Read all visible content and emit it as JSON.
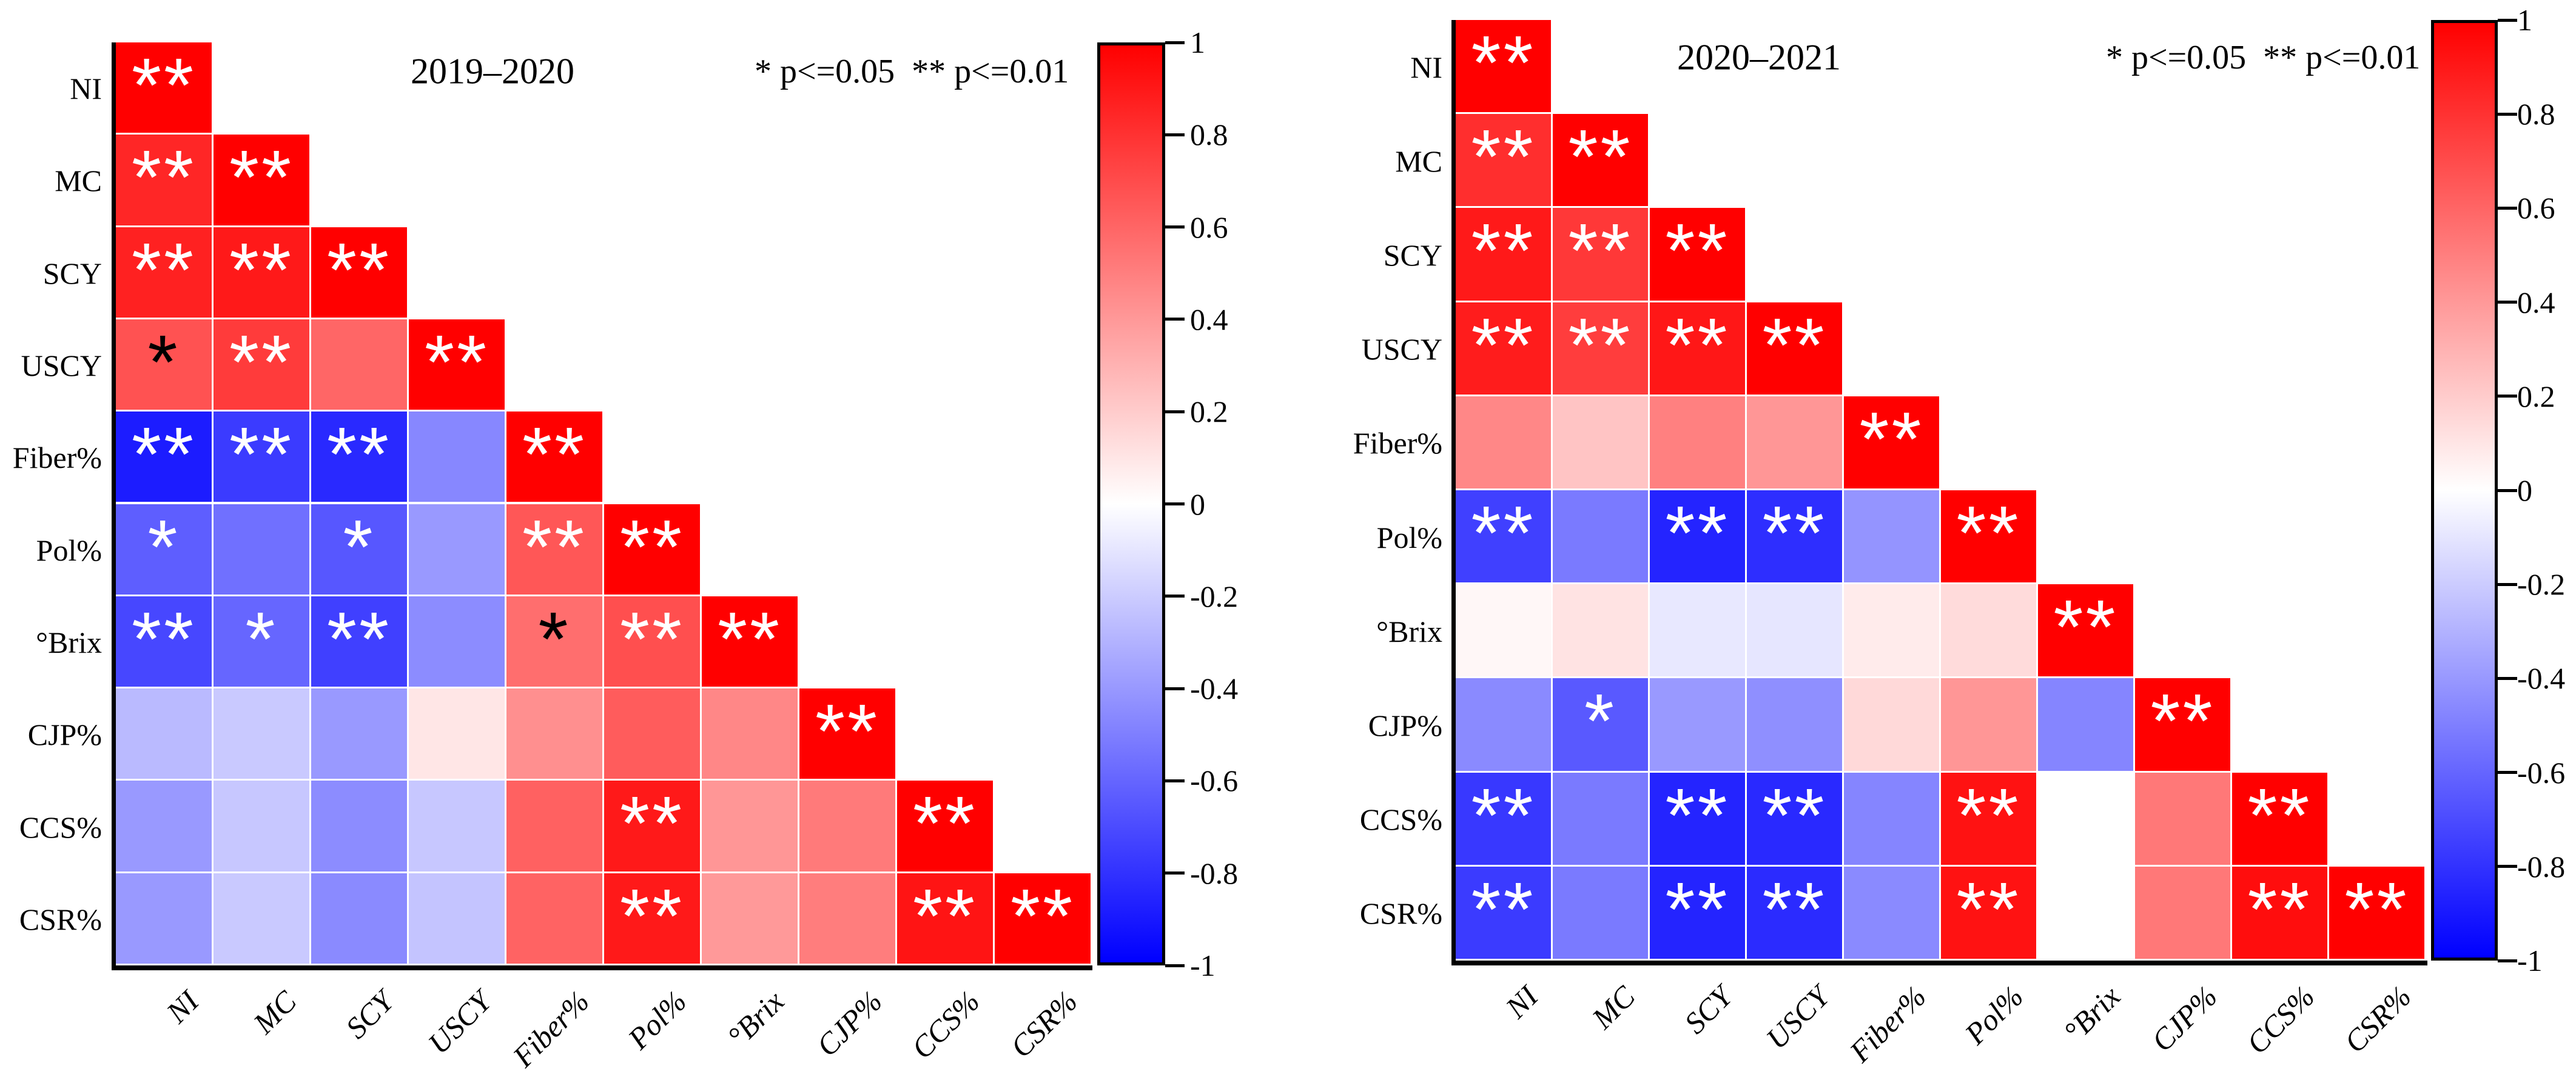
{
  "figure": {
    "description": "Two lower-triangular correlation heatmaps of sugarcane traits with significance markers",
    "colorbar": {
      "tick_labels": [
        "1",
        "0.8",
        "0.6",
        "0.4",
        "0.2",
        "0",
        "-0.2",
        "-0.4",
        "-0.6",
        "-0.8",
        "-1"
      ],
      "max_color": "#ff0000",
      "mid_color": "#ffffff",
      "min_color": "#0000ff",
      "axis_color": "#000000"
    },
    "marker_colors": {
      "w": "#ffffff",
      "b": "#000000"
    }
  },
  "chart_data": [
    {
      "type": "heatmap",
      "title": "2019–2020",
      "legend": "* p<=0.05  ** p<=0.01",
      "layout": "lower-triangle",
      "value_range": [
        -1,
        1
      ],
      "categories": [
        "NI",
        "MC",
        "SCY",
        "USCY",
        "Fiber%",
        "Pol%",
        "°Brix",
        "CJP%",
        "CCS%",
        "CSR%"
      ],
      "cell_format": "[correlation, significance, marker_color(w=white,b=black)]",
      "rows": [
        [
          [
            1.0,
            "**",
            "w"
          ]
        ],
        [
          [
            0.85,
            "**",
            "w"
          ],
          [
            1.0,
            "**",
            "w"
          ]
        ],
        [
          [
            0.87,
            "**",
            "w"
          ],
          [
            0.9,
            "**",
            "w"
          ],
          [
            1.0,
            "**",
            "w"
          ]
        ],
        [
          [
            0.68,
            "*",
            "b"
          ],
          [
            0.77,
            "**",
            "w"
          ],
          [
            0.6,
            "",
            ""
          ],
          [
            1.0,
            "**",
            "w"
          ]
        ],
        [
          [
            -0.89,
            "**",
            "w"
          ],
          [
            -0.77,
            "**",
            "w"
          ],
          [
            -0.84,
            "**",
            "w"
          ],
          [
            -0.47,
            "",
            ""
          ],
          [
            1.0,
            "**",
            "w"
          ]
        ],
        [
          [
            -0.63,
            "*",
            "w"
          ],
          [
            -0.56,
            "",
            ""
          ],
          [
            -0.66,
            "*",
            "w"
          ],
          [
            -0.4,
            "",
            ""
          ],
          [
            0.66,
            "**",
            "w"
          ],
          [
            1.0,
            "**",
            "w"
          ]
        ],
        [
          [
            -0.72,
            "**",
            "w"
          ],
          [
            -0.6,
            "*",
            "w"
          ],
          [
            -0.75,
            "**",
            "w"
          ],
          [
            -0.45,
            "",
            ""
          ],
          [
            0.57,
            "*",
            "b"
          ],
          [
            0.69,
            "**",
            "w"
          ],
          [
            1.0,
            "**",
            "w"
          ]
        ],
        [
          [
            -0.27,
            "",
            ""
          ],
          [
            -0.21,
            "",
            ""
          ],
          [
            -0.4,
            "",
            ""
          ],
          [
            0.1,
            "",
            ""
          ],
          [
            0.44,
            "",
            ""
          ],
          [
            0.64,
            "",
            ""
          ],
          [
            0.47,
            "",
            ""
          ],
          [
            1.0,
            "**",
            "w"
          ]
        ],
        [
          [
            -0.4,
            "",
            ""
          ],
          [
            -0.22,
            "",
            ""
          ],
          [
            -0.45,
            "",
            ""
          ],
          [
            -0.22,
            "",
            ""
          ],
          [
            0.62,
            "",
            ""
          ],
          [
            0.9,
            "**",
            "w"
          ],
          [
            0.41,
            "",
            ""
          ],
          [
            0.52,
            "",
            ""
          ],
          [
            1.0,
            "**",
            "w"
          ]
        ],
        [
          [
            -0.4,
            "",
            ""
          ],
          [
            -0.21,
            "",
            ""
          ],
          [
            -0.46,
            "",
            ""
          ],
          [
            -0.23,
            "",
            ""
          ],
          [
            0.61,
            "",
            ""
          ],
          [
            0.9,
            "**",
            "w"
          ],
          [
            0.4,
            "",
            ""
          ],
          [
            0.51,
            "",
            ""
          ],
          [
            0.92,
            "**",
            "w"
          ],
          [
            1.0,
            "**",
            "w"
          ]
        ]
      ]
    },
    {
      "type": "heatmap",
      "title": "2020–2021",
      "legend": "* p<=0.05  ** p<=0.01",
      "layout": "lower-triangle",
      "value_range": [
        -1,
        1
      ],
      "categories": [
        "NI",
        "MC",
        "SCY",
        "USCY",
        "Fiber%",
        "Pol%",
        "°Brix",
        "CJP%",
        "CCS%",
        "CSR%"
      ],
      "cell_format": "[correlation, significance, marker_color(w=white,b=black)]",
      "rows": [
        [
          [
            1.0,
            "**",
            "w"
          ]
        ],
        [
          [
            0.82,
            "**",
            "w"
          ],
          [
            1.0,
            "**",
            "w"
          ]
        ],
        [
          [
            0.9,
            "**",
            "w"
          ],
          [
            0.78,
            "**",
            "w"
          ],
          [
            1.0,
            "**",
            "w"
          ]
        ],
        [
          [
            0.89,
            "**",
            "w"
          ],
          [
            0.76,
            "**",
            "w"
          ],
          [
            0.91,
            "**",
            "w"
          ],
          [
            1.0,
            "**",
            "w"
          ]
        ],
        [
          [
            0.47,
            "",
            ""
          ],
          [
            0.23,
            "",
            ""
          ],
          [
            0.5,
            "",
            ""
          ],
          [
            0.41,
            "",
            ""
          ],
          [
            1.0,
            "**",
            "w"
          ]
        ],
        [
          [
            -0.75,
            "**",
            "w"
          ],
          [
            -0.52,
            "",
            ""
          ],
          [
            -0.86,
            "**",
            "w"
          ],
          [
            -0.82,
            "**",
            "w"
          ],
          [
            -0.42,
            "",
            ""
          ],
          [
            1.0,
            "**",
            "w"
          ]
        ],
        [
          [
            0.03,
            "",
            ""
          ],
          [
            0.11,
            "",
            ""
          ],
          [
            -0.09,
            "",
            ""
          ],
          [
            -0.1,
            "",
            ""
          ],
          [
            0.08,
            "",
            ""
          ],
          [
            0.14,
            "",
            ""
          ],
          [
            1.0,
            "**",
            "w"
          ]
        ],
        [
          [
            -0.46,
            "",
            ""
          ],
          [
            -0.65,
            "*",
            "w"
          ],
          [
            -0.4,
            "",
            ""
          ],
          [
            -0.44,
            "",
            ""
          ],
          [
            0.15,
            "",
            ""
          ],
          [
            0.41,
            "",
            ""
          ],
          [
            -0.48,
            "",
            ""
          ],
          [
            1.0,
            "**",
            "w"
          ]
        ],
        [
          [
            -0.78,
            "**",
            "w"
          ],
          [
            -0.52,
            "",
            ""
          ],
          [
            -0.86,
            "**",
            "w"
          ],
          [
            -0.84,
            "**",
            "w"
          ],
          [
            -0.48,
            "",
            ""
          ],
          [
            0.93,
            "**",
            "w"
          ],
          [
            0.0,
            "",
            ""
          ],
          [
            0.53,
            "",
            ""
          ],
          [
            1.0,
            "**",
            "w"
          ]
        ],
        [
          [
            -0.77,
            "**",
            "w"
          ],
          [
            -0.52,
            "",
            ""
          ],
          [
            -0.86,
            "**",
            "w"
          ],
          [
            -0.83,
            "**",
            "w"
          ],
          [
            -0.46,
            "",
            ""
          ],
          [
            0.93,
            "**",
            "w"
          ],
          [
            0.0,
            "",
            ""
          ],
          [
            0.53,
            "",
            ""
          ],
          [
            0.95,
            "**",
            "w"
          ],
          [
            1.0,
            "**",
            "w"
          ]
        ]
      ]
    }
  ]
}
